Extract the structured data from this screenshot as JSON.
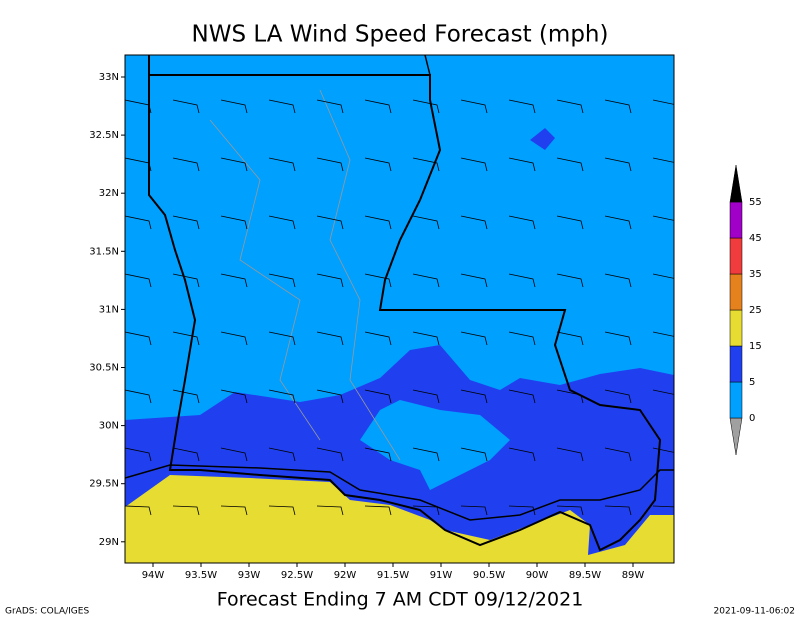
{
  "title": "NWS LA Wind Speed Forecast (mph)",
  "map": {
    "lon_labels": [
      "94W",
      "93.5W",
      "93W",
      "92.5W",
      "92W",
      "91.5W",
      "91W",
      "90.5W",
      "90W",
      "89.5W",
      "89W"
    ],
    "lat_labels": [
      "33N",
      "32.5N",
      "32N",
      "31.5N",
      "31N",
      "30.5N",
      "30N",
      "29.5N",
      "29N"
    ]
  },
  "colorbar": {
    "labels": [
      0,
      5,
      15,
      25,
      35,
      45,
      55
    ],
    "colors": [
      "#a0a0a0",
      "#00a0ff",
      "#2040f0",
      "#e6dc32",
      "#e6821e",
      "#f03c3c",
      "#a000c8",
      "#000000"
    ]
  },
  "footer": "Forecast Ending 7 AM CDT 09/12/2021",
  "credit": "GrADS: COLA/IGES",
  "timestamp": "2021-09-11-06:02"
}
